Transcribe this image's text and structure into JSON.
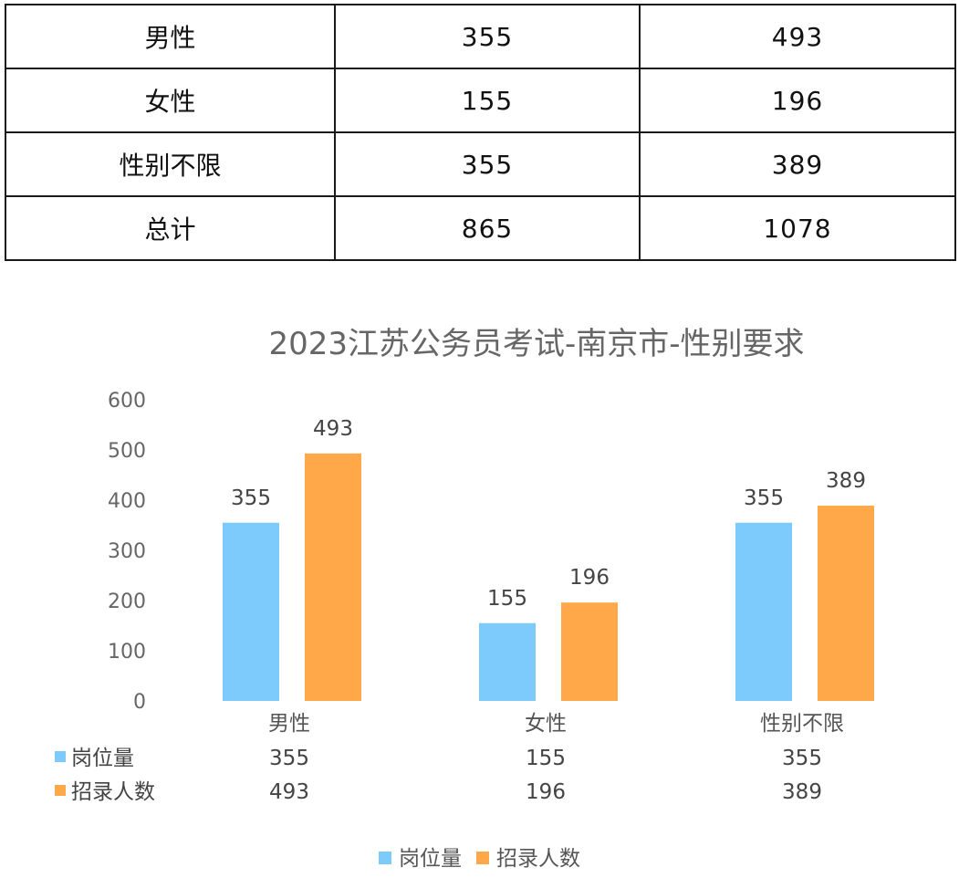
{
  "table": {
    "rows": [
      {
        "label": "男性",
        "positions": "355",
        "recruits": "493"
      },
      {
        "label": "女性",
        "positions": "155",
        "recruits": "196"
      },
      {
        "label": "性别不限",
        "positions": "355",
        "recruits": "389"
      },
      {
        "label": "总计",
        "positions": "865",
        "recruits": "1078"
      }
    ]
  },
  "colors": {
    "series_positions": "#7ccbfc",
    "series_recruits": "#ffa84a"
  },
  "chart_data": {
    "type": "bar",
    "title": "2023江苏公务员考试-南京市-性别要求",
    "categories": [
      "男性",
      "女性",
      "性别不限"
    ],
    "series": [
      {
        "name": "岗位量",
        "values": [
          355,
          155,
          355
        ]
      },
      {
        "name": "招录人数",
        "values": [
          493,
          196,
          389
        ]
      }
    ],
    "ylim": [
      0,
      600
    ],
    "yticks": [
      0,
      100,
      200,
      300,
      400,
      500,
      600
    ],
    "grid": false,
    "legend": "bottom-center",
    "data_table": true
  }
}
